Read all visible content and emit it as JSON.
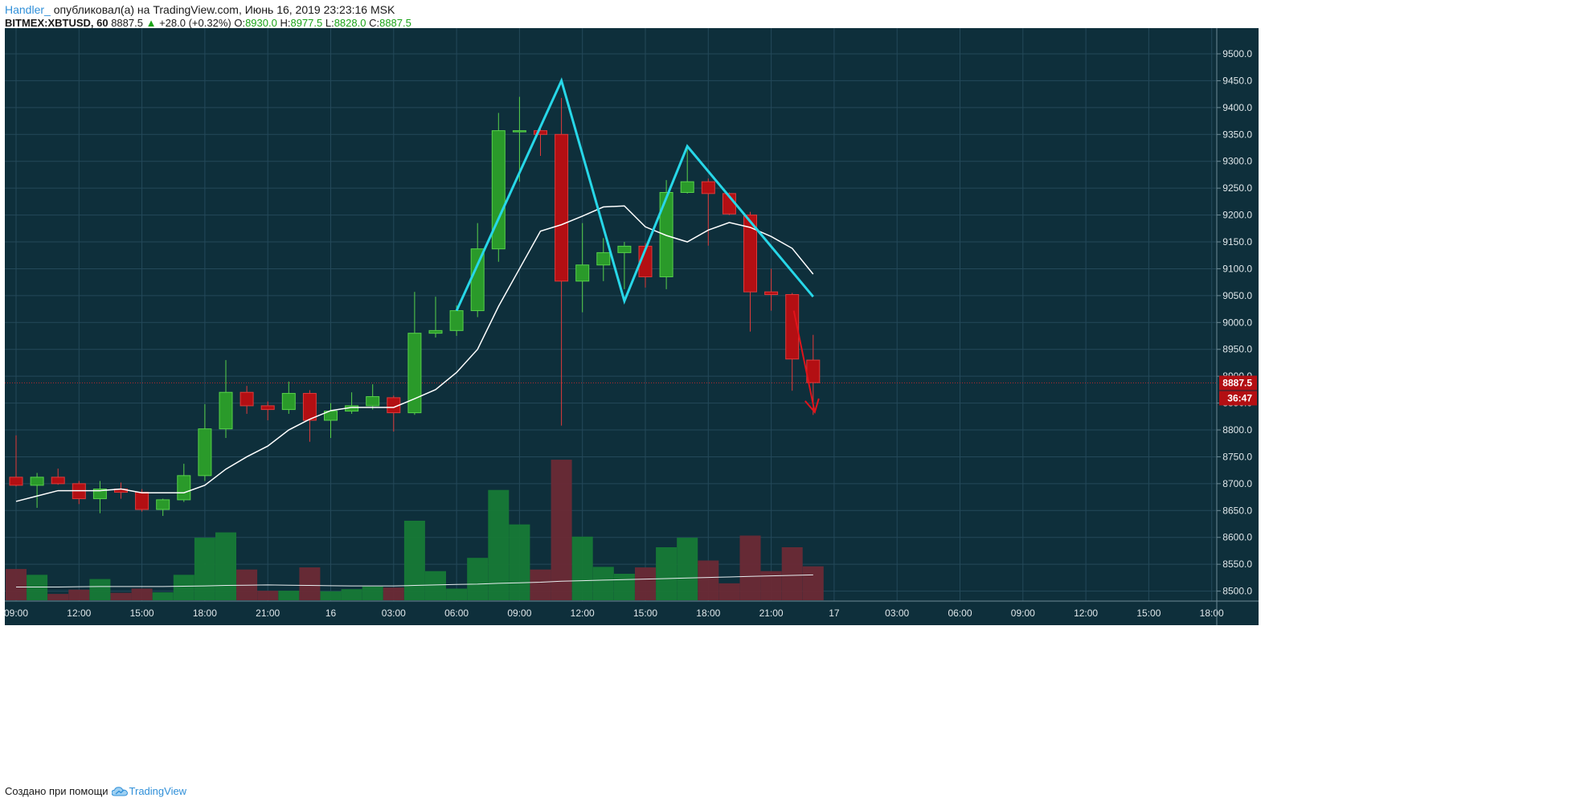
{
  "header": {
    "author": "Handler_",
    "published_text": "опубликовал(а) на TradingView.com, Июнь 16, 2019 23:23:16 MSK",
    "symbol": "BITMEX:XBTUSD, 60",
    "last": "8887.5",
    "change": "+28.0 (+0.32%)",
    "open_label": "O:",
    "open": "8930.0",
    "high_label": "H:",
    "high": "8977.5",
    "low_label": "L:",
    "low": "8828.0",
    "close_label": "C:",
    "close": "8887.5"
  },
  "footer": {
    "created_text": "Создано при помощи",
    "brand": "TradingView"
  },
  "colors": {
    "background": "#0e2f3b",
    "grid": "#24495a",
    "up": "#2a9a2a",
    "down": "#b30f13",
    "pattern_line": "#27d7e8",
    "ma_line": "#ffffff",
    "arrow": "#e0141b",
    "axis_text": "#dfe7ea"
  },
  "chart_data": {
    "type": "candlestick",
    "price_axis": {
      "ticks": [
        "9500.0",
        "9450.0",
        "9400.0",
        "9350.0",
        "9300.0",
        "9250.0",
        "9200.0",
        "9150.0",
        "9100.0",
        "9050.0",
        "9000.0",
        "8950.0",
        "8900.0",
        "8850.0",
        "8800.0",
        "8750.0",
        "8700.0",
        "8650.0",
        "8600.0",
        "8550.0",
        "8500.0"
      ],
      "range": [
        8484,
        9552
      ]
    },
    "time_axis": {
      "labels": [
        "09:00",
        "12:00",
        "15:00",
        "18:00",
        "21:00",
        "16",
        "03:00",
        "06:00",
        "09:00",
        "12:00",
        "15:00",
        "18:00",
        "21:00",
        "17",
        "03:00",
        "06:00",
        "09:00",
        "12:00",
        "15:00",
        "18:00"
      ],
      "label_bar_index": [
        0,
        3,
        6,
        9,
        12,
        15,
        18,
        21,
        24,
        27,
        30,
        33,
        36,
        39,
        42,
        45,
        48,
        51,
        54,
        57
      ]
    },
    "candles": [
      {
        "o": 8712,
        "h": 8790,
        "l": 8695,
        "c": 8697
      },
      {
        "o": 8697,
        "h": 8720,
        "l": 8655,
        "c": 8712
      },
      {
        "o": 8712,
        "h": 8728,
        "l": 8698,
        "c": 8700
      },
      {
        "o": 8700,
        "h": 8705,
        "l": 8662,
        "c": 8672
      },
      {
        "o": 8672,
        "h": 8705,
        "l": 8645,
        "c": 8690
      },
      {
        "o": 8690,
        "h": 8702,
        "l": 8672,
        "c": 8684
      },
      {
        "o": 8684,
        "h": 8690,
        "l": 8648,
        "c": 8652
      },
      {
        "o": 8652,
        "h": 8672,
        "l": 8640,
        "c": 8670
      },
      {
        "o": 8670,
        "h": 8737,
        "l": 8666,
        "c": 8715
      },
      {
        "o": 8715,
        "h": 8848,
        "l": 8705,
        "c": 8802
      },
      {
        "o": 8802,
        "h": 8930,
        "l": 8785,
        "c": 8870
      },
      {
        "o": 8870,
        "h": 8882,
        "l": 8830,
        "c": 8845
      },
      {
        "o": 8845,
        "h": 8853,
        "l": 8818,
        "c": 8838
      },
      {
        "o": 8838,
        "h": 8890,
        "l": 8830,
        "c": 8868
      },
      {
        "o": 8868,
        "h": 8874,
        "l": 8778,
        "c": 8818
      },
      {
        "o": 8818,
        "h": 8850,
        "l": 8785,
        "c": 8835
      },
      {
        "o": 8835,
        "h": 8870,
        "l": 8830,
        "c": 8845
      },
      {
        "o": 8845,
        "h": 8885,
        "l": 8838,
        "c": 8862
      },
      {
        "o": 8860,
        "h": 8864,
        "l": 8797,
        "c": 8832
      },
      {
        "o": 8832,
        "h": 9057,
        "l": 8828,
        "c": 8980
      },
      {
        "o": 8980,
        "h": 9048,
        "l": 8972,
        "c": 8985
      },
      {
        "o": 8985,
        "h": 9032,
        "l": 8975,
        "c": 9022
      },
      {
        "o": 9022,
        "h": 9185,
        "l": 9010,
        "c": 9137
      },
      {
        "o": 9137,
        "h": 9390,
        "l": 9113,
        "c": 9357
      },
      {
        "o": 9355,
        "h": 9420,
        "l": 9262,
        "c": 9357
      },
      {
        "o": 9357,
        "h": 9362,
        "l": 9310,
        "c": 9350
      },
      {
        "o": 9350,
        "h": 9418,
        "l": 8808,
        "c": 9077
      },
      {
        "o": 9077,
        "h": 9185,
        "l": 9019,
        "c": 9107
      },
      {
        "o": 9107,
        "h": 9157,
        "l": 9077,
        "c": 9130
      },
      {
        "o": 9130,
        "h": 9150,
        "l": 9062,
        "c": 9142
      },
      {
        "o": 9142,
        "h": 9148,
        "l": 9065,
        "c": 9085
      },
      {
        "o": 9085,
        "h": 9265,
        "l": 9062,
        "c": 9242
      },
      {
        "o": 9242,
        "h": 9325,
        "l": 9240,
        "c": 9262
      },
      {
        "o": 9262,
        "h": 9268,
        "l": 9143,
        "c": 9240
      },
      {
        "o": 9240,
        "h": 9242,
        "l": 9200,
        "c": 9202
      },
      {
        "o": 9200,
        "h": 9206,
        "l": 8983,
        "c": 9057
      },
      {
        "o": 9057,
        "h": 9100,
        "l": 9022,
        "c": 9052
      },
      {
        "o": 9052,
        "h": 9055,
        "l": 8873,
        "c": 8932
      },
      {
        "o": 8930,
        "h": 8977,
        "l": 8828,
        "c": 8888
      }
    ],
    "volume": [
      59,
      48,
      12,
      20,
      40,
      14,
      22,
      15,
      48,
      118,
      128,
      58,
      18,
      18,
      62,
      17,
      21,
      26,
      24,
      150,
      55,
      22,
      80,
      208,
      143,
      58,
      265,
      120,
      63,
      50,
      62,
      100,
      118,
      75,
      32,
      122,
      55,
      100,
      64
    ],
    "volume_ma": [
      25,
      25,
      25,
      25.5,
      26,
      26,
      26,
      26,
      26.5,
      27,
      28,
      28.5,
      29,
      28.5,
      28,
      27.5,
      27,
      27,
      27,
      28,
      29,
      30,
      30.5,
      32,
      33,
      34,
      36,
      37,
      38,
      39,
      40,
      41,
      42,
      43,
      44,
      45,
      46,
      47,
      48
    ],
    "moving_average": [
      8667,
      8677,
      8687,
      8687,
      8687,
      8690,
      8683,
      8683,
      8683,
      8697,
      8727,
      8750,
      8770,
      8800,
      8820,
      8836,
      8842,
      8842,
      8842,
      8858,
      8875,
      8907,
      8950,
      9030,
      9100,
      9170,
      9182,
      9198,
      9215,
      9217,
      9178,
      9162,
      9150,
      9172,
      9186,
      9177,
      9160,
      9138,
      9090
    ],
    "pattern_points": [
      [
        21,
        9022
      ],
      [
        26,
        9450
      ],
      [
        29,
        9040
      ],
      [
        32,
        9328
      ],
      [
        38,
        9048
      ]
    ],
    "current_price_label": "8887.5",
    "countdown_label": "36:47",
    "annotation_arrow": {
      "from": [
        37,
        9022
      ],
      "to": [
        38,
        8833
      ]
    }
  }
}
